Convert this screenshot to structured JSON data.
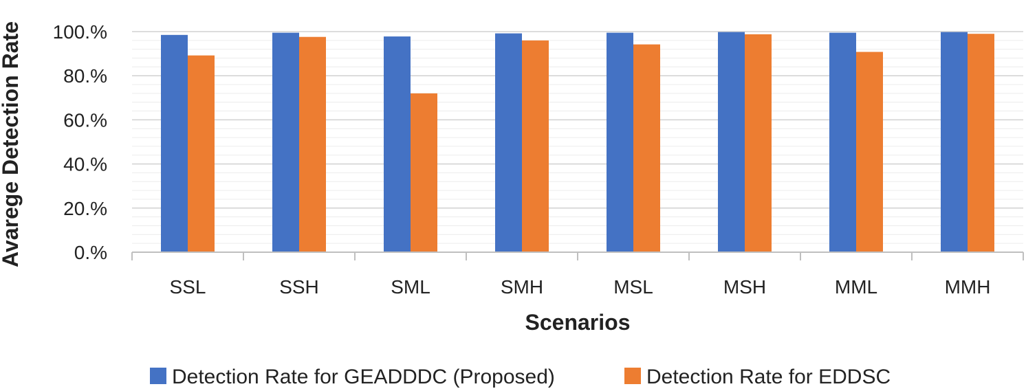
{
  "chart_data": {
    "type": "bar",
    "title": "",
    "xlabel": "Scenarios",
    "ylabel": "Avarege Detection Rate",
    "categories": [
      "SSL",
      "SSH",
      "SML",
      "SMH",
      "MSL",
      "MSH",
      "MML",
      "MMH"
    ],
    "series": [
      {
        "name": "Detection Rate for GEADDDC (Proposed)",
        "color": "#4472c4",
        "values": [
          98.5,
          99.5,
          97.8,
          99.2,
          99.5,
          99.8,
          99.5,
          99.8
        ]
      },
      {
        "name": "Detection Rate for EDDSC",
        "color": "#ed7d31",
        "values": [
          89.2,
          97.6,
          72.0,
          96.0,
          94.2,
          98.8,
          90.8,
          99.0
        ]
      }
    ],
    "ylim": [
      0,
      100
    ],
    "yticks": [
      0,
      20,
      40,
      60,
      80,
      100
    ],
    "ytick_labels": [
      "0.%",
      "20.%",
      "40.%",
      "60.%",
      "80.%",
      "100.%"
    ],
    "grid": true,
    "minor_grid": true,
    "legend_position": "bottom"
  }
}
